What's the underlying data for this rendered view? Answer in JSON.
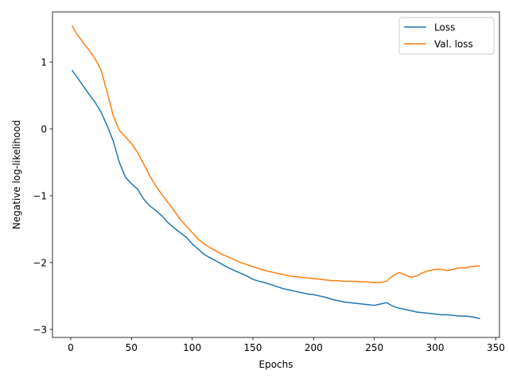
{
  "chart_data": {
    "type": "line",
    "title": "",
    "xlabel": "Epochs",
    "ylabel": "Negative log-likelihood",
    "xlim": [
      -15,
      353
    ],
    "ylim": [
      -3.12,
      1.75
    ],
    "xticks": [
      0,
      50,
      100,
      150,
      200,
      250,
      300,
      350
    ],
    "yticks": [
      -3,
      -2,
      -1,
      0,
      1
    ],
    "grid": false,
    "legend_position": "top-right",
    "series": [
      {
        "name": "Loss",
        "color": "#1f77b4",
        "x": [
          1,
          5,
          10,
          15,
          20,
          25,
          30,
          35,
          40,
          45,
          50,
          55,
          60,
          65,
          70,
          75,
          80,
          85,
          90,
          95,
          100,
          105,
          110,
          115,
          120,
          125,
          130,
          135,
          140,
          145,
          150,
          155,
          160,
          165,
          170,
          175,
          180,
          185,
          190,
          195,
          200,
          205,
          210,
          215,
          220,
          225,
          230,
          235,
          240,
          245,
          250,
          255,
          260,
          265,
          270,
          275,
          280,
          285,
          290,
          295,
          300,
          305,
          310,
          315,
          320,
          325,
          330,
          335,
          337
        ],
        "y": [
          0.88,
          0.78,
          0.65,
          0.52,
          0.4,
          0.25,
          0.05,
          -0.18,
          -0.5,
          -0.72,
          -0.82,
          -0.9,
          -1.05,
          -1.15,
          -1.22,
          -1.3,
          -1.4,
          -1.48,
          -1.55,
          -1.62,
          -1.72,
          -1.8,
          -1.88,
          -1.93,
          -1.98,
          -2.03,
          -2.08,
          -2.12,
          -2.16,
          -2.2,
          -2.25,
          -2.28,
          -2.3,
          -2.33,
          -2.36,
          -2.39,
          -2.41,
          -2.43,
          -2.45,
          -2.47,
          -2.48,
          -2.5,
          -2.52,
          -2.55,
          -2.57,
          -2.59,
          -2.6,
          -2.61,
          -2.62,
          -2.63,
          -2.64,
          -2.62,
          -2.6,
          -2.65,
          -2.68,
          -2.7,
          -2.72,
          -2.74,
          -2.75,
          -2.76,
          -2.77,
          -2.78,
          -2.78,
          -2.79,
          -2.8,
          -2.8,
          -2.81,
          -2.83,
          -2.84
        ]
      },
      {
        "name": "Val. loss",
        "color": "#ff7f0e",
        "x": [
          1,
          5,
          10,
          15,
          20,
          25,
          30,
          35,
          40,
          45,
          50,
          55,
          60,
          65,
          70,
          75,
          80,
          85,
          90,
          95,
          100,
          105,
          110,
          115,
          120,
          125,
          130,
          135,
          140,
          145,
          150,
          155,
          160,
          165,
          170,
          175,
          180,
          185,
          190,
          195,
          200,
          205,
          210,
          215,
          220,
          225,
          230,
          235,
          240,
          245,
          250,
          255,
          260,
          265,
          270,
          275,
          280,
          285,
          290,
          295,
          300,
          305,
          310,
          315,
          320,
          325,
          330,
          335,
          337
        ],
        "y": [
          1.55,
          1.42,
          1.3,
          1.18,
          1.05,
          0.88,
          0.55,
          0.2,
          -0.02,
          -0.12,
          -0.22,
          -0.35,
          -0.52,
          -0.7,
          -0.85,
          -0.98,
          -1.1,
          -1.22,
          -1.35,
          -1.45,
          -1.55,
          -1.65,
          -1.72,
          -1.78,
          -1.83,
          -1.88,
          -1.92,
          -1.96,
          -2.0,
          -2.03,
          -2.06,
          -2.09,
          -2.12,
          -2.14,
          -2.16,
          -2.18,
          -2.2,
          -2.21,
          -2.22,
          -2.23,
          -2.24,
          -2.25,
          -2.26,
          -2.27,
          -2.27,
          -2.28,
          -2.28,
          -2.28,
          -2.29,
          -2.29,
          -2.3,
          -2.3,
          -2.28,
          -2.2,
          -2.15,
          -2.18,
          -2.22,
          -2.2,
          -2.15,
          -2.12,
          -2.1,
          -2.1,
          -2.12,
          -2.1,
          -2.08,
          -2.08,
          -2.06,
          -2.05,
          -2.05
        ]
      }
    ]
  }
}
